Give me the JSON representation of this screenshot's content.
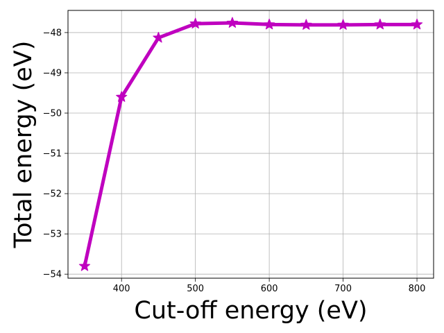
{
  "chart_data": {
    "type": "line",
    "title": "",
    "xlabel": "Cut-off energy (eV)",
    "ylabel": "Total energy (eV)",
    "xlim": [
      327.5,
      822.5
    ],
    "ylim": [
      -54.1,
      -47.45
    ],
    "grid": true,
    "x_ticks": [
      400,
      500,
      600,
      700,
      800
    ],
    "y_ticks": [
      -54,
      -53,
      -52,
      -51,
      -50,
      -49,
      -48
    ],
    "series": [
      {
        "color": "#bf00bf",
        "marker": "star",
        "x": [
          350,
          400,
          450,
          500,
          550,
          600,
          650,
          700,
          750,
          800
        ],
        "y": [
          -53.8,
          -49.6,
          -48.13,
          -47.78,
          -47.76,
          -47.8,
          -47.81,
          -47.81,
          -47.8,
          -47.8
        ]
      }
    ]
  }
}
